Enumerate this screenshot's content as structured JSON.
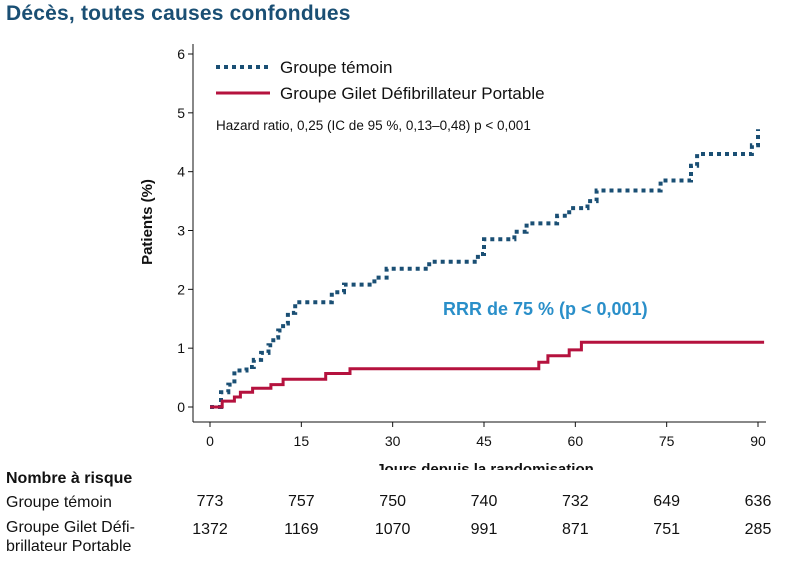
{
  "title": "Décès, toutes causes confondues",
  "chart_data": {
    "type": "line",
    "ylabel": "Patients (%)",
    "xlabel": "Jours depuis la randomisation",
    "xlim": [
      0,
      91
    ],
    "ylim": [
      0,
      6.2
    ],
    "xticks": [
      0,
      15,
      30,
      45,
      60,
      75,
      90
    ],
    "yticks": [
      0,
      1,
      2,
      3,
      4,
      5,
      6
    ],
    "grid": false,
    "legend_position": "top-left",
    "annotation": "Hazard ratio, 0,25 (IC de 95 %, 0,13–0,48) p < 0,001",
    "rrr_label": "RRR de 75 % (p < 0,001)",
    "series": [
      {
        "name": "Groupe témoin",
        "color": "#1a4f74",
        "style": "dotted",
        "points": [
          [
            0,
            0
          ],
          [
            1.8,
            0
          ],
          [
            1.8,
            0.25
          ],
          [
            3,
            0.25
          ],
          [
            3,
            0.38
          ],
          [
            4,
            0.38
          ],
          [
            4,
            0.62
          ],
          [
            6,
            0.62
          ],
          [
            6,
            0.68
          ],
          [
            7.2,
            0.68
          ],
          [
            7.2,
            0.8
          ],
          [
            8.4,
            0.8
          ],
          [
            8.4,
            0.92
          ],
          [
            9.6,
            0.92
          ],
          [
            9.6,
            1.05
          ],
          [
            10.4,
            1.05
          ],
          [
            10.4,
            1.18
          ],
          [
            11.2,
            1.18
          ],
          [
            11.2,
            1.3
          ],
          [
            12,
            1.3
          ],
          [
            12,
            1.42
          ],
          [
            12.8,
            1.42
          ],
          [
            12.8,
            1.6
          ],
          [
            14,
            1.6
          ],
          [
            14,
            1.78
          ],
          [
            20,
            1.78
          ],
          [
            20,
            1.95
          ],
          [
            22,
            1.95
          ],
          [
            22,
            2.08
          ],
          [
            27,
            2.08
          ],
          [
            27,
            2.2
          ],
          [
            29,
            2.2
          ],
          [
            29,
            2.35
          ],
          [
            36,
            2.35
          ],
          [
            36,
            2.47
          ],
          [
            44,
            2.47
          ],
          [
            44,
            2.6
          ],
          [
            45,
            2.6
          ],
          [
            45,
            2.85
          ],
          [
            50,
            2.85
          ],
          [
            50,
            2.98
          ],
          [
            52,
            2.98
          ],
          [
            52,
            3.12
          ],
          [
            57,
            3.12
          ],
          [
            57,
            3.25
          ],
          [
            59,
            3.25
          ],
          [
            59,
            3.38
          ],
          [
            62,
            3.38
          ],
          [
            62,
            3.5
          ],
          [
            63.5,
            3.5
          ],
          [
            63.5,
            3.68
          ],
          [
            74,
            3.68
          ],
          [
            74,
            3.85
          ],
          [
            79,
            3.85
          ],
          [
            79,
            4.1
          ],
          [
            80,
            4.1
          ],
          [
            80,
            4.3
          ],
          [
            89,
            4.3
          ],
          [
            89,
            4.45
          ],
          [
            90,
            4.45
          ],
          [
            90,
            4.72
          ]
        ]
      },
      {
        "name": "Groupe Gilet Défibrillateur Portable",
        "color": "#b5123e",
        "style": "solid",
        "points": [
          [
            0,
            0
          ],
          [
            2,
            0
          ],
          [
            2,
            0.1
          ],
          [
            4,
            0.1
          ],
          [
            4,
            0.17
          ],
          [
            5,
            0.17
          ],
          [
            5,
            0.25
          ],
          [
            7,
            0.25
          ],
          [
            7,
            0.32
          ],
          [
            10,
            0.32
          ],
          [
            10,
            0.38
          ],
          [
            12,
            0.38
          ],
          [
            12,
            0.47
          ],
          [
            19,
            0.47
          ],
          [
            19,
            0.57
          ],
          [
            23,
            0.57
          ],
          [
            23,
            0.65
          ],
          [
            54,
            0.65
          ],
          [
            54,
            0.76
          ],
          [
            55.5,
            0.76
          ],
          [
            55.5,
            0.87
          ],
          [
            59,
            0.87
          ],
          [
            59,
            0.97
          ],
          [
            61,
            0.97
          ],
          [
            61,
            1.1
          ],
          [
            91,
            1.1
          ]
        ]
      }
    ]
  },
  "risk_table": {
    "header": "Nombre à risque",
    "rows": [
      {
        "label": "Groupe témoin",
        "values": [
          "773",
          "757",
          "750",
          "740",
          "732",
          "649",
          "636"
        ]
      },
      {
        "label_line1": "Groupe Gilet Défi-",
        "label_line2": "brillateur Portable",
        "values": [
          "1372",
          "1169",
          "1070",
          "991",
          "871",
          "751",
          "285"
        ]
      }
    ]
  }
}
